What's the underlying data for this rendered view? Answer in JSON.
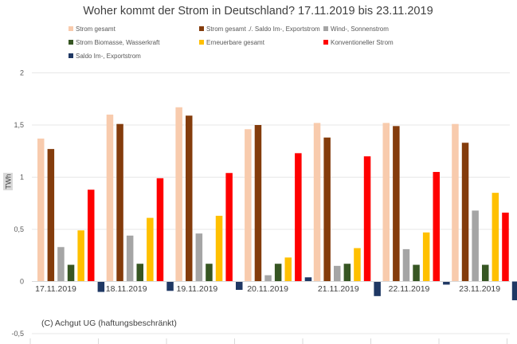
{
  "chart_data": {
    "type": "bar",
    "title": "Woher kommt der Strom in Deutschland? 17.11.2019 bis 23.11.2019",
    "xlabel": "",
    "ylabel": "TWh",
    "ylim": [
      -0.5,
      2
    ],
    "yticks": [
      -0.5,
      0,
      0.5,
      1,
      1.5,
      2
    ],
    "ytick_labels": [
      "-0,5",
      "0",
      "0,5",
      "1",
      "1,5",
      "2"
    ],
    "grid": true,
    "legend_position": "top",
    "categories": [
      "17.11.2019",
      "18.11.2019",
      "19.11.2019",
      "20.11.2019",
      "21.11.2019",
      "22.11.2019",
      "23.11.2019"
    ],
    "series": [
      {
        "name": "Strom gesamt",
        "color": "#F8CBAD",
        "values": [
          1.37,
          1.6,
          1.67,
          1.46,
          1.52,
          1.52,
          1.51
        ]
      },
      {
        "name": "Strom gesamt ./. Saldo Im-, Exportstrom",
        "color": "#843C0C",
        "values": [
          1.27,
          1.51,
          1.59,
          1.5,
          1.38,
          1.49,
          1.33
        ]
      },
      {
        "name": "Wind-, Sonnenstrom",
        "color": "#A5A5A5",
        "values": [
          0.33,
          0.44,
          0.46,
          0.06,
          0.15,
          0.31,
          0.68
        ]
      },
      {
        "name": "Strom Biomasse, Wasserkraft",
        "color": "#375623",
        "values": [
          0.16,
          0.17,
          0.17,
          0.17,
          0.17,
          0.16,
          0.16
        ]
      },
      {
        "name": "Erneuerbare gesamt",
        "color": "#FFC000",
        "values": [
          0.49,
          0.61,
          0.63,
          0.23,
          0.32,
          0.47,
          0.85
        ]
      },
      {
        "name": "Konventioneller Strom",
        "color": "#FF0000",
        "values": [
          0.88,
          0.99,
          1.04,
          1.23,
          1.2,
          1.05,
          0.66
        ]
      },
      {
        "name": "Saldo Im-, Exportstrom",
        "color": "#1F3864",
        "values": [
          -0.1,
          -0.09,
          -0.08,
          0.04,
          -0.14,
          -0.03,
          -0.18
        ]
      }
    ],
    "annotations": [
      "(C) Achgut UG (haftungsbeschränkt)"
    ]
  }
}
